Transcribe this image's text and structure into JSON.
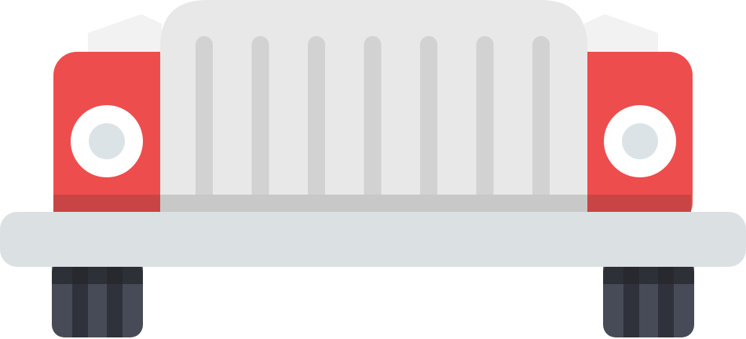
{
  "illustration": {
    "subject": "jeep-front-view-icon",
    "colors": {
      "body": "#ee4d4d",
      "body_shadow": "#c94545",
      "grille": "#e8e8e8",
      "grille_slot": "#d2d2d2",
      "grille_band": "#c8c8c8",
      "windshield_frame": "#f2f2f2",
      "headlight_ring": "#ffffff",
      "headlight_lens": "#dce3e6",
      "bumper": "#dbe0e3",
      "tire_dark": "#2f323b",
      "tire_light": "#474b57",
      "tire_top": "#23252b"
    },
    "grille_slot_count": 7
  }
}
